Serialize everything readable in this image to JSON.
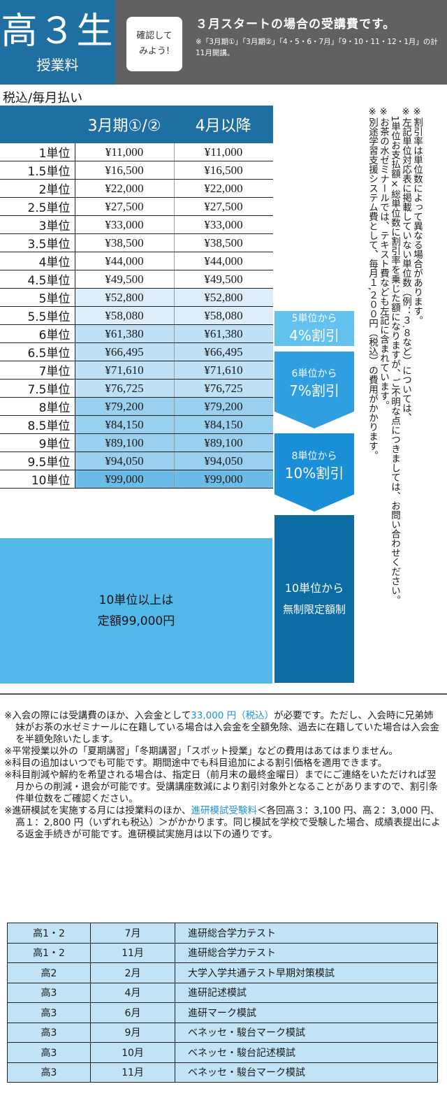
{
  "header": {
    "grade": "高３生",
    "subtitle": "授業料",
    "check_line1": "確認して",
    "check_line2": "みよう!",
    "title": "３月スタートの場合の受講費です。",
    "note": "※「3月期①」「3月期②」「4・5・6・7月」「9・10・11・12・1月」の計11月開講。"
  },
  "tax_note": "税込/毎月払い",
  "price_table": {
    "headers": [
      "3月期①/②",
      "4月以降"
    ],
    "rows": [
      {
        "unit": "1単位",
        "march": "¥11,000",
        "april": "¥11,000"
      },
      {
        "unit": "1.5単位",
        "march": "¥16,500",
        "april": "¥16,500"
      },
      {
        "unit": "2単位",
        "march": "¥22,000",
        "april": "¥22,000"
      },
      {
        "unit": "2.5単位",
        "march": "¥27,500",
        "april": "¥27,500"
      },
      {
        "unit": "3単位",
        "march": "¥33,000",
        "april": "¥33,000"
      },
      {
        "unit": "3.5単位",
        "march": "¥38,500",
        "april": "¥38,500"
      },
      {
        "unit": "4単位",
        "march": "¥44,000",
        "april": "¥44,000"
      },
      {
        "unit": "4.5単位",
        "march": "¥49,500",
        "april": "¥49,500"
      },
      {
        "unit": "5単位",
        "march": "¥52,800",
        "april": "¥52,800"
      },
      {
        "unit": "5.5単位",
        "march": "¥58,080",
        "april": "¥58,080"
      },
      {
        "unit": "6単位",
        "march": "¥61,380",
        "april": "¥61,380"
      },
      {
        "unit": "6.5単位",
        "march": "¥66,495",
        "april": "¥66,495"
      },
      {
        "unit": "7単位",
        "march": "¥71,610",
        "april": "¥71,610"
      },
      {
        "unit": "7.5単位",
        "march": "¥76,725",
        "april": "¥76,725"
      },
      {
        "unit": "8単位",
        "march": "¥79,200",
        "april": "¥79,200"
      },
      {
        "unit": "8.5単位",
        "march": "¥84,150",
        "april": "¥84,150"
      },
      {
        "unit": "9単位",
        "march": "¥89,100",
        "april": "¥89,100"
      },
      {
        "unit": "9.5単位",
        "march": "¥94,050",
        "april": "¥94,050"
      },
      {
        "unit": "10単位",
        "march": "¥99,000",
        "april": "¥99,000"
      }
    ],
    "flat_line1": "10単位以上は",
    "flat_line2": "定額99,000円"
  },
  "discounts": [
    {
      "line1": "5単位から",
      "line2": "4%割引"
    },
    {
      "line1": "6単位から",
      "line2": "7%割引"
    },
    {
      "line1": "8単位から",
      "line2": "10%割引"
    },
    {
      "line1": "10単位から",
      "line2": "無制限定額制"
    }
  ],
  "vertical_notes": [
    "※割引率は単位数によって異なる場合があります。",
    "※左記単位対応表に掲載していない単位数（例：３.８など）については、",
    "　1単位お支払額×総単位数に割引率を乗じた額になりますが、ご不明な点につきましては、お問い合わせください。",
    "※お茶の水ゼミナールでは、テキスト費なども左記に含まれています。",
    "※別途学習支援システム費として、毎月１,２００円（税込）の費用がかかります。"
  ],
  "notes": {
    "n1_pre": "※入会の際には受講費のほか、入会金として",
    "n1_hl": "33,000 円（税込）",
    "n1_post": "が必要です。ただし、入会時に兄弟姉妹がお茶の水ゼミナールに在籍している場合は入会金を全額免除、過去に在籍していた場合は入会金を半額免除いたします。",
    "n2": "※平常授業以外の「夏期講習」「冬期講習」「スポット授業」などの費用はあてはまりません。",
    "n3": "※科目の追加はいつでも可能です。期間途中でも科目追加による割引価格を適用できます。",
    "n4": "※科目削減や解約を希望される場合は、指定日（前月末の最終金曜日）までにご連絡をいただければ翌月からの削減・退会が可能です。受講講座数減により割引対象外となることがありますので、割引条件単位数をご確認ください。",
    "n5_pre": "※進研模試を実施する月には授業料のほか、",
    "n5_hl": "進研模試受験料",
    "n5_post": "＜各回高３：3,100 円、高２：3,000 円、高１：2,800 円（いずれも税込）＞がかかります。同じ模試を学校で受験した場合、成績表提出による返金手続きが可能です。進研模試実施月は以下の通りです。"
  },
  "exam_table": [
    {
      "grade": "高1・2",
      "month": "7月",
      "name": "進研総合学力テスト"
    },
    {
      "grade": "高1・2",
      "month": "11月",
      "name": "進研総合学力テスト"
    },
    {
      "grade": "高2",
      "month": "2月",
      "name": "大学入学共通テスト早期対策模試"
    },
    {
      "grade": "高3",
      "month": "4月",
      "name": "進研記述模試"
    },
    {
      "grade": "高3",
      "month": "6月",
      "name": "進研マーク模試"
    },
    {
      "grade": "高3",
      "month": "9月",
      "name": "ベネッセ・駿台マーク模試"
    },
    {
      "grade": "高3",
      "month": "10月",
      "name": "ベネッセ・駿台記述模試"
    },
    {
      "grade": "高3",
      "month": "11月",
      "name": "ベネッセ・駿台マーク模試"
    }
  ]
}
